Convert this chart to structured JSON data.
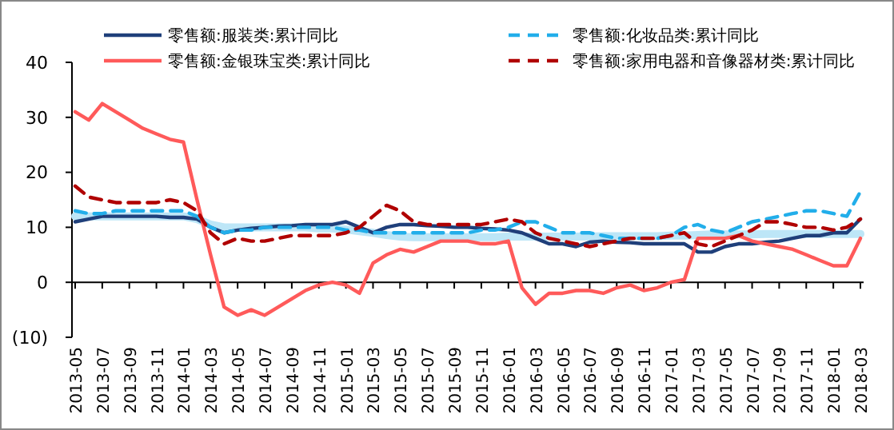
{
  "chart_data": {
    "type": "line",
    "categories": [
      "2013-05",
      null,
      "2013-07",
      null,
      "2013-09",
      null,
      "2013-11",
      null,
      "2014-01",
      null,
      "2014-03",
      null,
      "2014-05",
      null,
      "2014-07",
      null,
      "2014-09",
      null,
      "2014-11",
      null,
      "2015-01",
      null,
      "2015-03",
      null,
      "2015-05",
      null,
      "2015-07",
      null,
      "2015-09",
      null,
      "2015-11",
      null,
      "2016-01",
      null,
      "2016-03",
      null,
      "2016-05",
      null,
      "2016-07",
      null,
      "2016-09",
      null,
      "2016-11",
      null,
      "2017-01",
      null,
      "2017-03",
      null,
      "2017-05",
      null,
      "2017-07",
      null,
      "2017-09",
      null,
      "2017-11",
      null,
      "2018-01",
      null,
      "2018-03"
    ],
    "series": [
      {
        "color": "#bde6f7",
        "values": [
          12,
          12,
          12,
          12,
          12,
          12,
          12,
          12,
          12,
          11.5,
          10.5,
          10,
          10,
          10,
          10,
          10,
          10,
          10,
          9.8,
          9.8,
          9.6,
          9.3,
          9,
          8.6,
          8.3,
          8.2,
          8.2,
          8.2,
          8.2,
          8.2,
          8.2,
          8.2,
          8.3,
          8.3,
          8.3,
          8.3,
          8.3,
          8.3,
          8.3,
          8.4,
          8.4,
          8.4,
          8.4,
          8.4,
          8.5,
          8.5,
          8.6,
          8.7,
          8.7,
          8.7,
          8.7,
          8.8,
          8.8,
          8.8,
          8.8,
          8.8,
          8.8,
          8.8,
          8.8
        ]
      },
      {
        "name": "零售额:服装类:累计同比",
        "color": "#1f3f7a",
        "line_style": "solid",
        "values": [
          11,
          11.5,
          12,
          12,
          12,
          12,
          12,
          11.8,
          11.8,
          11.5,
          10,
          9,
          9.5,
          9.8,
          10,
          10.2,
          10.3,
          10.5,
          10.5,
          10.5,
          11,
          10,
          9,
          10,
          10.5,
          10.5,
          10.3,
          10.2,
          10,
          10,
          9.8,
          9.7,
          9.5,
          9,
          8,
          7,
          7,
          6.5,
          7.3,
          7.5,
          7.3,
          7.2,
          7,
          7,
          7,
          7,
          5.5,
          5.5,
          6.5,
          7,
          7,
          7.3,
          7.5,
          8,
          8.5,
          8.5,
          9,
          9,
          11.5
        ]
      },
      {
        "name": "零售额:化妆品类:累计同比",
        "color": "#22aeea",
        "line_style": "dashed",
        "values": [
          13,
          12.5,
          12.5,
          13,
          13,
          13,
          13,
          13,
          13,
          12,
          10,
          9,
          9.5,
          9.5,
          10,
          10,
          10,
          10,
          10,
          10,
          9.5,
          9.5,
          9,
          9,
          9,
          9,
          9,
          9,
          9,
          9,
          9.5,
          9.5,
          10,
          11,
          11,
          10,
          9,
          9,
          9,
          8.5,
          8,
          8,
          8,
          8,
          8.5,
          10,
          10.5,
          9.5,
          9,
          10,
          11,
          11.5,
          12,
          12.5,
          13,
          13,
          12.5,
          12,
          16.5
        ]
      },
      {
        "name": "零售额:金银珠宝类:累计同比",
        "color": "#ff5a5a",
        "line_style": "solid",
        "values": [
          31,
          29.5,
          32.5,
          31,
          29.5,
          28,
          27,
          26,
          25.5,
          15,
          5,
          -4.5,
          -6,
          -5,
          -6,
          -4.5,
          -3,
          -1.5,
          -0.5,
          0,
          -0.5,
          -2,
          3.5,
          5,
          6,
          5.5,
          6.5,
          7.5,
          7.5,
          7.5,
          7,
          7,
          7.5,
          -1,
          -4,
          -2,
          -2,
          -1.5,
          -1.5,
          -2,
          -1,
          -0.5,
          -1.5,
          -1,
          0,
          0.5,
          8,
          8,
          8,
          8.5,
          7.5,
          7,
          6.5,
          6,
          5,
          4,
          3,
          3,
          8
        ]
      },
      {
        "name": "零售额:家用电器和音像器材类:累计同比",
        "color": "#b00000",
        "line_style": "dashed",
        "values": [
          17.5,
          15.5,
          15,
          14.5,
          14.5,
          14.5,
          14.5,
          15,
          14.5,
          13,
          9,
          7,
          8,
          7.5,
          7.5,
          8,
          8.5,
          8.5,
          8.5,
          8.5,
          9,
          10,
          12,
          14,
          13,
          11,
          10.5,
          10.5,
          10.5,
          10.5,
          10.5,
          11,
          11.5,
          11,
          9,
          8,
          7.5,
          7,
          6.5,
          7,
          7.5,
          8,
          8,
          8,
          8.5,
          9,
          7,
          6.5,
          7.5,
          8.5,
          9.5,
          11,
          11,
          10.5,
          10,
          10,
          9.5,
          10,
          11.5
        ]
      }
    ],
    "ylim": [
      -10,
      40
    ],
    "yticks": [
      {
        "value": -10,
        "label": "(10)"
      },
      0,
      10,
      20,
      30,
      40
    ],
    "legend": "top"
  }
}
